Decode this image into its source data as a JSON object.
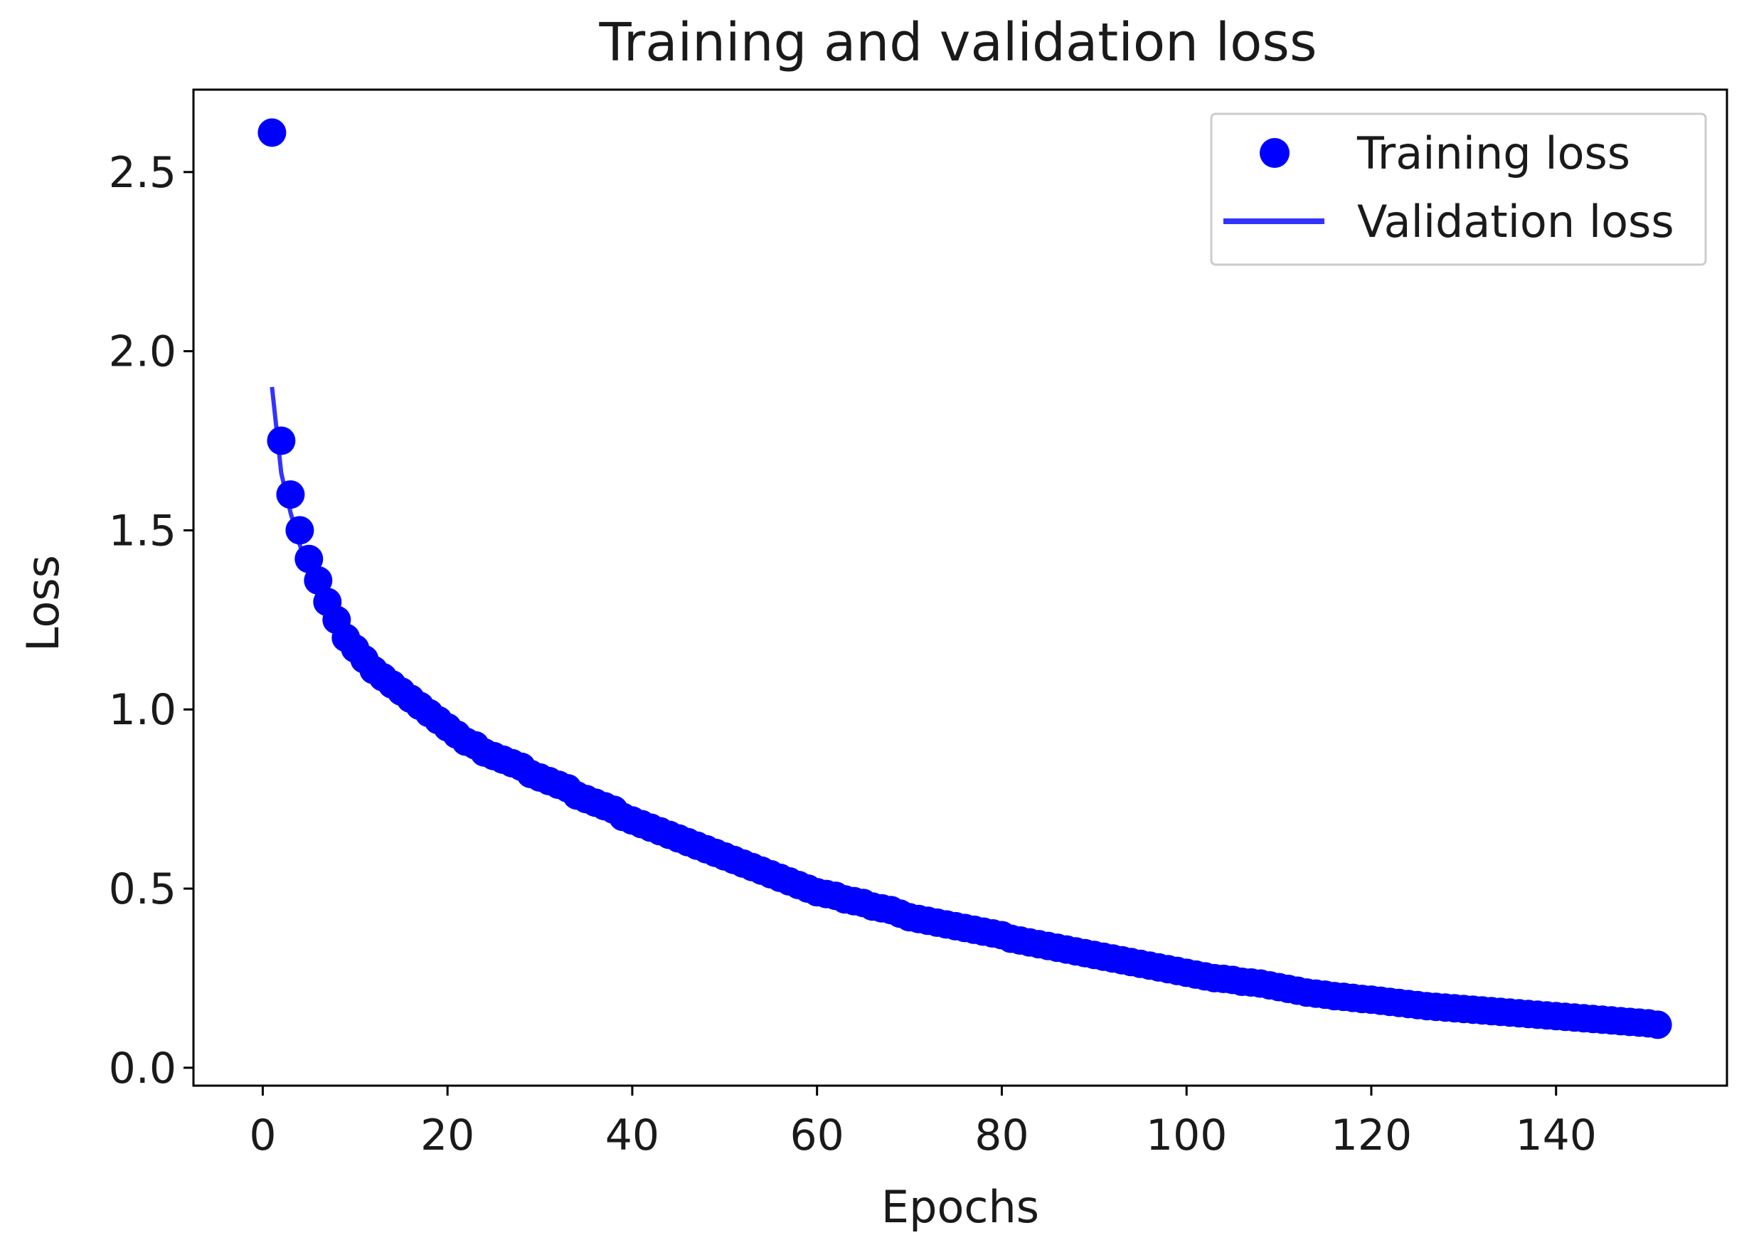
{
  "chart_data": {
    "type": "scatter",
    "title": "Training and validation loss",
    "xlabel": "Epochs",
    "ylabel": "Loss",
    "xlim": [
      -7.5,
      158.5
    ],
    "ylim": [
      -0.05,
      2.73
    ],
    "xticks": [
      0,
      20,
      40,
      60,
      80,
      100,
      120,
      140
    ],
    "xtick_labels": [
      "0",
      "20",
      "40",
      "60",
      "80",
      "100",
      "120",
      "140"
    ],
    "yticks": [
      0.0,
      0.5,
      1.0,
      1.5,
      2.0,
      2.5
    ],
    "ytick_labels": [
      "0.0",
      "0.5",
      "1.0",
      "1.5",
      "2.0",
      "2.5"
    ],
    "legend_position": "top-right",
    "series": [
      {
        "name": "Training loss",
        "style": "markers",
        "color": "#0000ff",
        "x": [
          1,
          2,
          3,
          4,
          5,
          6,
          7,
          8,
          9,
          10,
          11,
          12,
          13,
          14,
          15,
          16,
          17,
          18,
          19,
          20,
          21,
          22,
          23,
          24,
          25,
          26,
          27,
          28,
          29,
          30,
          31,
          32,
          33,
          34,
          35,
          36,
          37,
          38,
          39,
          40,
          41,
          42,
          43,
          44,
          45,
          46,
          47,
          48,
          49,
          50,
          51,
          52,
          53,
          54,
          55,
          56,
          57,
          58,
          59,
          60,
          61,
          62,
          63,
          64,
          65,
          66,
          67,
          68,
          69,
          70,
          71,
          72,
          73,
          74,
          75,
          76,
          77,
          78,
          79,
          80,
          81,
          82,
          83,
          84,
          85,
          86,
          87,
          88,
          89,
          90,
          91,
          92,
          93,
          94,
          95,
          96,
          97,
          98,
          99,
          100,
          101,
          102,
          103,
          104,
          105,
          106,
          107,
          108,
          109,
          110,
          111,
          112,
          113,
          114,
          115,
          116,
          117,
          118,
          119,
          120,
          121,
          122,
          123,
          124,
          125,
          126,
          127,
          128,
          129,
          130,
          131,
          132,
          133,
          134,
          135,
          136,
          137,
          138,
          139,
          140,
          141,
          142,
          143,
          144,
          145,
          146,
          147,
          148,
          149,
          150,
          151
        ],
        "y": [
          2.61,
          1.75,
          1.6,
          1.5,
          1.42,
          1.36,
          1.3,
          1.25,
          1.2,
          1.17,
          1.14,
          1.11,
          1.09,
          1.07,
          1.05,
          1.03,
          1.01,
          0.99,
          0.97,
          0.95,
          0.93,
          0.91,
          0.9,
          0.88,
          0.87,
          0.86,
          0.85,
          0.84,
          0.82,
          0.81,
          0.8,
          0.79,
          0.78,
          0.76,
          0.75,
          0.74,
          0.73,
          0.72,
          0.7,
          0.69,
          0.68,
          0.67,
          0.66,
          0.65,
          0.64,
          0.63,
          0.62,
          0.61,
          0.6,
          0.59,
          0.58,
          0.57,
          0.56,
          0.55,
          0.54,
          0.53,
          0.52,
          0.51,
          0.5,
          0.49,
          0.485,
          0.48,
          0.47,
          0.465,
          0.46,
          0.45,
          0.445,
          0.44,
          0.43,
          0.42,
          0.415,
          0.41,
          0.405,
          0.4,
          0.395,
          0.39,
          0.385,
          0.38,
          0.375,
          0.37,
          0.36,
          0.355,
          0.35,
          0.345,
          0.34,
          0.335,
          0.33,
          0.325,
          0.32,
          0.315,
          0.31,
          0.305,
          0.3,
          0.295,
          0.29,
          0.285,
          0.28,
          0.275,
          0.27,
          0.265,
          0.26,
          0.255,
          0.25,
          0.248,
          0.245,
          0.24,
          0.238,
          0.235,
          0.23,
          0.225,
          0.22,
          0.215,
          0.21,
          0.207,
          0.204,
          0.2,
          0.198,
          0.195,
          0.192,
          0.19,
          0.187,
          0.184,
          0.181,
          0.178,
          0.175,
          0.172,
          0.17,
          0.168,
          0.166,
          0.164,
          0.162,
          0.16,
          0.158,
          0.156,
          0.154,
          0.152,
          0.15,
          0.148,
          0.146,
          0.144,
          0.142,
          0.14,
          0.138,
          0.136,
          0.134,
          0.132,
          0.13,
          0.128,
          0.126,
          0.124,
          0.12
        ]
      },
      {
        "name": "Validation loss",
        "style": "line",
        "color": "#0000ff",
        "x": [
          1,
          2,
          3,
          4,
          5,
          6,
          7,
          8,
          9,
          10,
          11,
          12,
          13,
          14,
          15,
          16,
          17,
          18,
          19,
          20,
          21,
          22,
          23,
          24,
          25,
          26,
          27,
          28,
          29,
          30,
          31,
          32,
          33,
          34,
          35,
          36,
          37,
          38,
          39,
          40,
          41,
          42,
          43,
          44,
          45,
          46,
          47,
          48,
          49,
          50,
          51,
          52,
          53,
          54,
          55,
          56,
          57,
          58,
          59,
          60,
          61,
          62,
          63,
          64,
          65,
          66,
          67,
          68,
          69,
          70,
          71,
          72,
          73,
          74,
          75,
          76,
          77,
          78,
          79,
          80,
          81,
          82,
          83,
          84,
          85,
          86,
          87,
          88,
          89,
          90,
          91,
          92,
          93,
          94,
          95,
          96,
          97,
          98,
          99,
          100,
          101,
          102,
          103,
          104,
          105,
          106,
          107,
          108,
          109,
          110,
          111,
          112,
          113,
          114,
          115,
          116,
          117,
          118,
          119,
          120,
          121,
          122,
          123,
          124,
          125,
          126,
          127,
          128,
          129,
          130,
          131,
          132,
          133,
          134,
          135,
          136,
          137,
          138,
          139,
          140,
          141,
          142,
          143,
          144,
          145,
          146,
          147,
          148,
          149,
          150,
          151
        ],
        "y": [
          1.9,
          1.66,
          1.55,
          1.46,
          1.39,
          1.33,
          1.28,
          1.23,
          1.19,
          1.16,
          1.13,
          1.1,
          1.08,
          1.06,
          1.04,
          1.02,
          1.0,
          0.98,
          0.96,
          0.94,
          0.92,
          0.905,
          0.89,
          0.875,
          0.865,
          0.855,
          0.845,
          0.835,
          0.82,
          0.805,
          0.795,
          0.785,
          0.775,
          0.76,
          0.748,
          0.738,
          0.728,
          0.716,
          0.704,
          0.692,
          0.68,
          0.67,
          0.66,
          0.65,
          0.64,
          0.63,
          0.62,
          0.61,
          0.6,
          0.59,
          0.58,
          0.57,
          0.56,
          0.55,
          0.54,
          0.53,
          0.52,
          0.51,
          0.5,
          0.49,
          0.484,
          0.478,
          0.47,
          0.464,
          0.458,
          0.45,
          0.444,
          0.438,
          0.43,
          0.422,
          0.416,
          0.41,
          0.404,
          0.4,
          0.395,
          0.39,
          0.384,
          0.378,
          0.372,
          0.366,
          0.36,
          0.354,
          0.348,
          0.344,
          0.34,
          0.334,
          0.328,
          0.324,
          0.32,
          0.314,
          0.308,
          0.304,
          0.3,
          0.294,
          0.288,
          0.284,
          0.28,
          0.274,
          0.27,
          0.264,
          0.26,
          0.254,
          0.25,
          0.247,
          0.244,
          0.24,
          0.237,
          0.234,
          0.23,
          0.224,
          0.22,
          0.214,
          0.21,
          0.206,
          0.203,
          0.2,
          0.197,
          0.194,
          0.191,
          0.188,
          0.186,
          0.183,
          0.18,
          0.177,
          0.174,
          0.171,
          0.169,
          0.167,
          0.165,
          0.163,
          0.161,
          0.159,
          0.157,
          0.155,
          0.153,
          0.151,
          0.149,
          0.147,
          0.145,
          0.143,
          0.141,
          0.139,
          0.137,
          0.135,
          0.133,
          0.131,
          0.129,
          0.127,
          0.125,
          0.123,
          0.119
        ]
      }
    ]
  }
}
